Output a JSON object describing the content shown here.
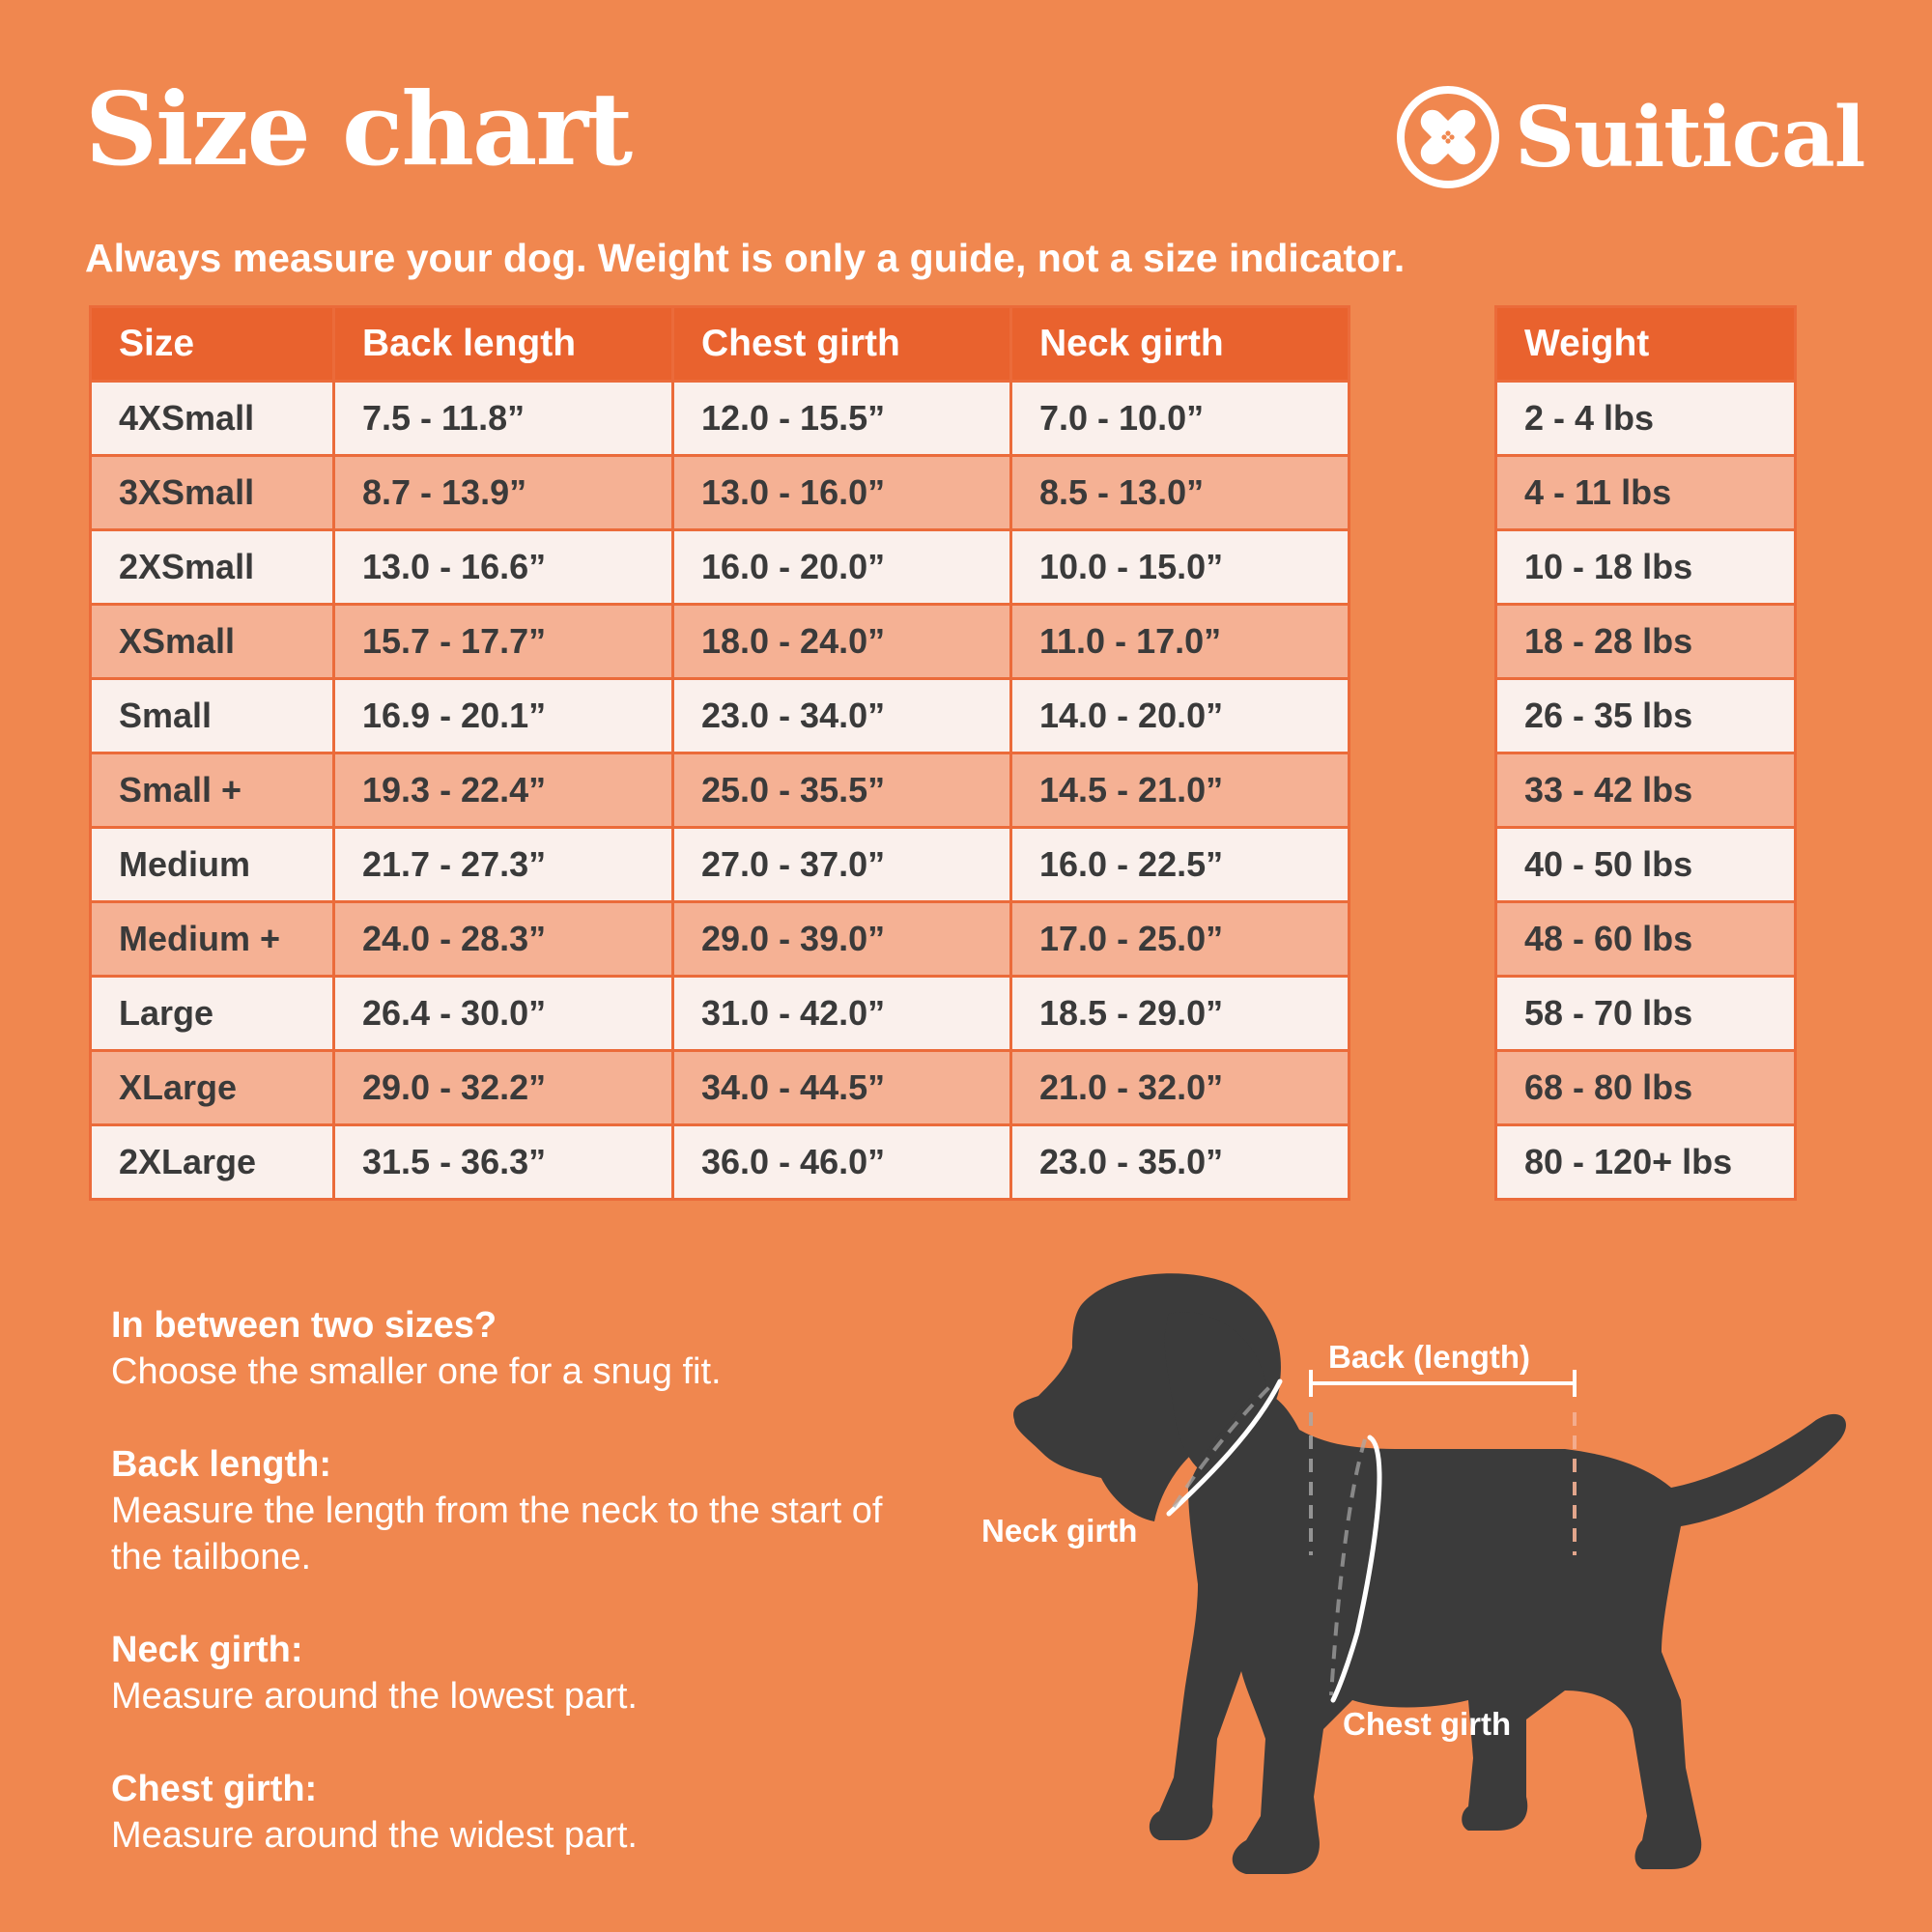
{
  "header": {
    "title": "Size chart",
    "brand": "Suitical",
    "subtitle": "Always measure your dog. Weight is only a guide, not a size indicator."
  },
  "table": {
    "headers": {
      "size": "Size",
      "back": "Back length",
      "chest": "Chest girth",
      "neck": "Neck girth",
      "weight": "Weight"
    },
    "rows": [
      {
        "size": "4XSmall",
        "back": "7.5 - 11.8”",
        "chest": "12.0 - 15.5”",
        "neck": "7.0 - 10.0”",
        "weight": "2 - 4 lbs"
      },
      {
        "size": "3XSmall",
        "back": "8.7 - 13.9”",
        "chest": "13.0 - 16.0”",
        "neck": "8.5 - 13.0”",
        "weight": "4 - 11 lbs"
      },
      {
        "size": "2XSmall",
        "back": "13.0 - 16.6”",
        "chest": "16.0 - 20.0”",
        "neck": "10.0 - 15.0”",
        "weight": "10 - 18 lbs"
      },
      {
        "size": "XSmall",
        "back": "15.7 - 17.7”",
        "chest": "18.0 - 24.0”",
        "neck": "11.0 - 17.0”",
        "weight": "18 - 28 lbs"
      },
      {
        "size": "Small",
        "back": "16.9 - 20.1”",
        "chest": "23.0 - 34.0”",
        "neck": "14.0 - 20.0”",
        "weight": "26 - 35 lbs"
      },
      {
        "size": "Small +",
        "back": "19.3 - 22.4”",
        "chest": "25.0 - 35.5”",
        "neck": "14.5 - 21.0”",
        "weight": "33 - 42 lbs"
      },
      {
        "size": "Medium",
        "back": "21.7 - 27.3”",
        "chest": "27.0 - 37.0”",
        "neck": "16.0 - 22.5”",
        "weight": "40 - 50 lbs"
      },
      {
        "size": "Medium +",
        "back": "24.0 - 28.3”",
        "chest": "29.0 - 39.0”",
        "neck": "17.0 - 25.0”",
        "weight": "48 - 60 lbs"
      },
      {
        "size": "Large",
        "back": "26.4 - 30.0”",
        "chest": "31.0 - 42.0”",
        "neck": "18.5 - 29.0”",
        "weight": "58 - 70 lbs"
      },
      {
        "size": "XLarge",
        "back": "29.0 - 32.2”",
        "chest": "34.0 - 44.5”",
        "neck": "21.0 - 32.0”",
        "weight": "68 - 80 lbs"
      },
      {
        "size": "2XLarge",
        "back": "31.5 - 36.3”",
        "chest": "36.0 - 46.0”",
        "neck": "23.0 - 35.0”",
        "weight": "80 - 120+ lbs"
      }
    ]
  },
  "tips": [
    {
      "heading": "In between two sizes?",
      "text": "Choose the smaller one for a snug fit."
    },
    {
      "heading": "Back length:",
      "text": "Measure the length from the neck to the start of the tailbone."
    },
    {
      "heading": "Neck girth:",
      "text": "Measure around the lowest part."
    },
    {
      "heading": "Chest girth:",
      "text": "Measure around the widest part."
    }
  ],
  "diagram": {
    "back_label": "Back (length)",
    "neck_label": "Neck girth",
    "chest_label": "Chest girth"
  },
  "colors": {
    "background": "#F0874F",
    "header_row": "#E9622E",
    "row_light": "#FAF0EC",
    "row_dark": "#F5B194",
    "dog": "#3B3B3B"
  },
  "icons": [
    "bandage-logo-icon",
    "dog-silhouette-icon"
  ]
}
